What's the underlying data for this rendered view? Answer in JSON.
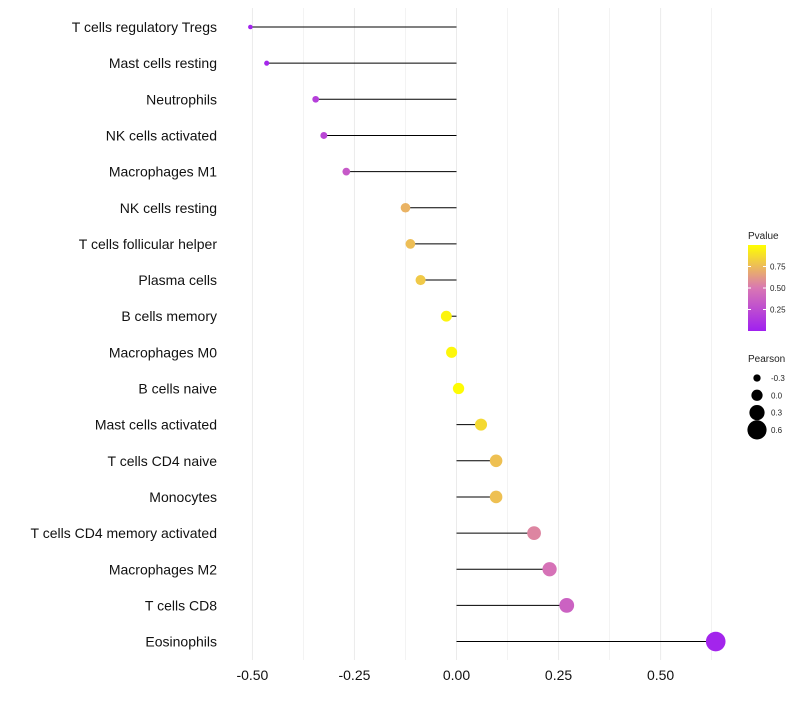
{
  "chart_data": {
    "type": "lollipop",
    "title": "",
    "xlabel": "",
    "ylabel": "",
    "xlim": [
      -0.55,
      0.67
    ],
    "xticks": [
      -0.5,
      -0.25,
      0.0,
      0.25,
      0.5
    ],
    "xtick_labels": [
      "-0.50",
      "-0.25",
      "0.00",
      "0.25",
      "0.50"
    ],
    "grid": true,
    "points": [
      {
        "category": "T cells regulatory  Tregs",
        "value": -0.505,
        "pvalue": 0.02
      },
      {
        "category": "Mast cells resting",
        "value": -0.465,
        "pvalue": 0.04
      },
      {
        "category": "Neutrophils",
        "value": -0.345,
        "pvalue": 0.18
      },
      {
        "category": "NK cells activated",
        "value": -0.325,
        "pvalue": 0.22
      },
      {
        "category": "Macrophages M1",
        "value": -0.27,
        "pvalue": 0.33
      },
      {
        "category": "NK cells resting",
        "value": -0.125,
        "pvalue": 0.72
      },
      {
        "category": "T cells follicular helper",
        "value": -0.113,
        "pvalue": 0.76
      },
      {
        "category": "Plasma cells",
        "value": -0.088,
        "pvalue": 0.8
      },
      {
        "category": "B cells memory",
        "value": -0.025,
        "pvalue": 0.96
      },
      {
        "category": "Macrophages M0",
        "value": -0.012,
        "pvalue": 0.97
      },
      {
        "category": "B cells naive",
        "value": 0.005,
        "pvalue": 0.99
      },
      {
        "category": "Mast cells activated",
        "value": 0.06,
        "pvalue": 0.86
      },
      {
        "category": "T cells CD4 naive",
        "value": 0.097,
        "pvalue": 0.77
      },
      {
        "category": "Monocytes",
        "value": 0.097,
        "pvalue": 0.77
      },
      {
        "category": "T cells CD4 memory activated",
        "value": 0.19,
        "pvalue": 0.55
      },
      {
        "category": "Macrophages M2",
        "value": 0.228,
        "pvalue": 0.47
      },
      {
        "category": "T cells CD8",
        "value": 0.27,
        "pvalue": 0.38
      },
      {
        "category": "Eosinophils",
        "value": 0.635,
        "pvalue": 0.03
      }
    ],
    "legend_pvalue": {
      "title": "Pvalue",
      "ticks": [
        0.25,
        0.5,
        0.75
      ],
      "tick_labels": [
        "0.25",
        "0.50",
        "0.75"
      ],
      "range": [
        0.0,
        1.0
      ],
      "low_color": "#a020f0",
      "mid_color": "#d977b3",
      "high_color": "#ffff00",
      "position": "right"
    },
    "legend_size": {
      "title": "Pearson",
      "values": [
        -0.3,
        0.0,
        0.3,
        0.6
      ],
      "labels": [
        "-0.3",
        "0.0",
        "0.3",
        "0.6"
      ],
      "position": "right"
    }
  },
  "colors": {
    "grid": "#ebebeb",
    "segment": "#000000",
    "text": "#111111"
  }
}
